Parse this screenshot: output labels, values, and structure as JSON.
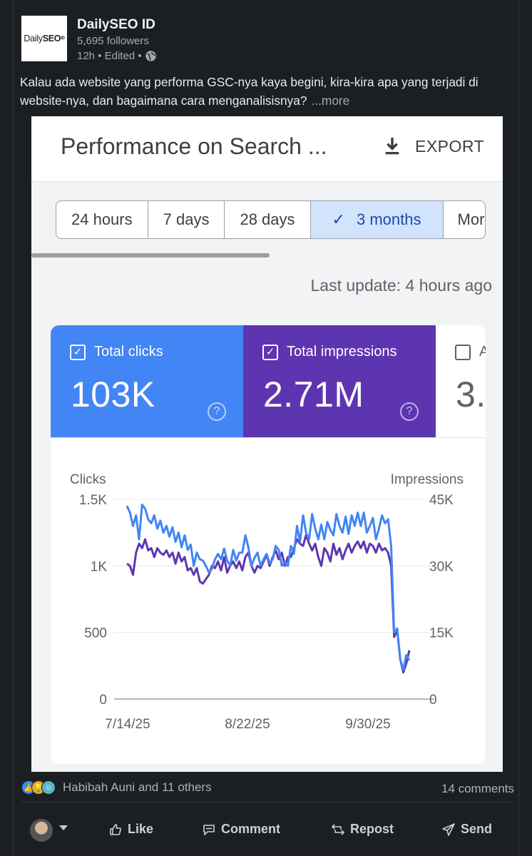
{
  "post": {
    "author": "DailySEO ID",
    "logo_text": {
      "light": "Daily",
      "bold": "SEO",
      "sup": "ID"
    },
    "followers": "5,695 followers",
    "meta": "12h • Edited •",
    "text": "Kalau ada website yang performa GSC-nya kaya begini, kira-kira apa yang terjadi di website-nya, dan bagaimana cara menganalisisnya?",
    "more_label": "...more"
  },
  "gsc": {
    "title": "Performance on Search ...",
    "export_label": "EXPORT",
    "tabs": [
      {
        "label": "24 hours",
        "active": false
      },
      {
        "label": "7 days",
        "active": false
      },
      {
        "label": "28 days",
        "active": false
      },
      {
        "label": "3 months",
        "active": true
      },
      {
        "label": "Mor",
        "active": false
      }
    ],
    "last_update": "Last update: 4 hours ago",
    "metrics": [
      {
        "label": "Total clicks",
        "value": "103K",
        "color": "#4285f4",
        "checked": true
      },
      {
        "label": "Total impressions",
        "value": "2.71M",
        "color": "#5e35b1",
        "checked": true
      },
      {
        "label": "A",
        "value": "3.",
        "checked": false
      }
    ]
  },
  "chart_data": {
    "type": "line",
    "left_axis_label": "Clicks",
    "right_axis_label": "Impressions",
    "left_ticks": [
      "1.5K",
      "1K",
      "500",
      "0"
    ],
    "right_ticks": [
      "45K",
      "30K",
      "15K",
      "0"
    ],
    "x_ticks": [
      "7/14/25",
      "8/22/25",
      "9/30/25"
    ],
    "ylim_left": [
      0,
      1500
    ],
    "ylim_right": [
      0,
      45000
    ],
    "series": [
      {
        "name": "Clicks",
        "color": "#4285f4",
        "values": [
          1450,
          1400,
          1300,
          1380,
          1200,
          1460,
          1430,
          1350,
          1320,
          1380,
          1280,
          1340,
          1250,
          1300,
          1220,
          1290,
          1180,
          1250,
          1140,
          1230,
          1120,
          1160,
          1000,
          1100,
          1050,
          1040,
          1000,
          950,
          980,
          1050,
          1090,
          1050,
          1130,
          1040,
          1000,
          1120,
          1040,
          1100,
          1100,
          1230,
          1140,
          1000,
          1060,
          1100,
          1000,
          1050,
          1090,
          1020,
          1050,
          1150,
          1120,
          1000,
          1030,
          1000,
          1150,
          1090,
          1300,
          1180,
          1380,
          1250,
          1200,
          1390,
          1280,
          1200,
          1310,
          1200,
          1330,
          1270,
          1230,
          1390,
          1300,
          1250,
          1370,
          1240,
          1380,
          1300,
          1400,
          1300,
          1400,
          1250,
          1300,
          1360,
          1200,
          1280,
          1380,
          1320,
          1350,
          1150,
          500,
          530,
          300,
          220,
          330,
          290
        ]
      },
      {
        "name": "Impressions",
        "color": "#5e35b1",
        "values": [
          30500,
          30000,
          28000,
          33000,
          35000,
          34000,
          36000,
          33500,
          34000,
          32000,
          34000,
          33000,
          32500,
          33500,
          32000,
          33000,
          30500,
          33000,
          31000,
          32000,
          29000,
          29500,
          28000,
          29500,
          26500,
          26000,
          27000,
          28000,
          30000,
          29500,
          31000,
          29000,
          32000,
          28500,
          30000,
          31000,
          29500,
          31000,
          29000,
          32000,
          33000,
          30000,
          28500,
          30000,
          29500,
          31000,
          32500,
          30000,
          32000,
          33500,
          31500,
          33000,
          30000,
          32000,
          32000,
          34000,
          36000,
          35000,
          34500,
          37000,
          35000,
          33500,
          35000,
          32000,
          30000,
          34000,
          33000,
          31000,
          35000,
          32500,
          34000,
          31500,
          33500,
          35000,
          33000,
          34500,
          35500,
          34000,
          35500,
          33000,
          35000,
          34500,
          33000,
          35000,
          33500,
          34000,
          33000,
          30000,
          14000,
          15500,
          9000,
          6000,
          8000,
          11000
        ]
      }
    ]
  },
  "footer": {
    "reactions_text": "Habibah Auni and 11 others",
    "comments_text": "14 comments",
    "actions": [
      "Like",
      "Comment",
      "Repost",
      "Send"
    ]
  }
}
